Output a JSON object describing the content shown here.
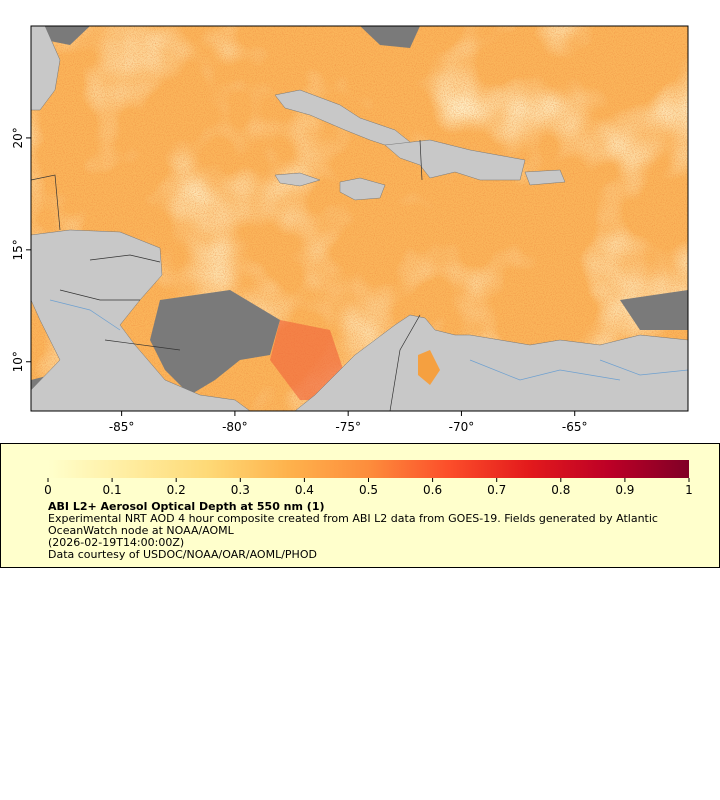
{
  "map": {
    "lon_range": [
      -89,
      -60
    ],
    "lat_range": [
      7.8,
      25
    ],
    "lon_ticks": [
      {
        "value": -85,
        "label": "-85°"
      },
      {
        "value": -80,
        "label": "-80°"
      },
      {
        "value": -75,
        "label": "-75°"
      },
      {
        "value": -70,
        "label": "-70°"
      },
      {
        "value": -65,
        "label": "-65°"
      }
    ],
    "lat_ticks": [
      {
        "value": 10,
        "label": "10°"
      },
      {
        "value": 15,
        "label": "15°"
      },
      {
        "value": 20,
        "label": "20°"
      }
    ]
  },
  "legend": {
    "range": [
      0,
      1
    ],
    "ticks": [
      0,
      0.1,
      0.2,
      0.3,
      0.4,
      0.5,
      0.6,
      0.7,
      0.8,
      0.9,
      1
    ],
    "title": "ABI L2+ Aerosol Optical Depth at 550 nm (1)",
    "description": "Experimental NRT AOD 4 hour composite created from ABI L2 data from GOES-19. Fields generated by Atlantic OceanWatch node at NOAA/AOML",
    "timestamp": "(2026-02-19T14:00:00Z)",
    "credit": "Data courtesy of USDOC/NOAA/OAR/AOML/PHOD"
  }
}
